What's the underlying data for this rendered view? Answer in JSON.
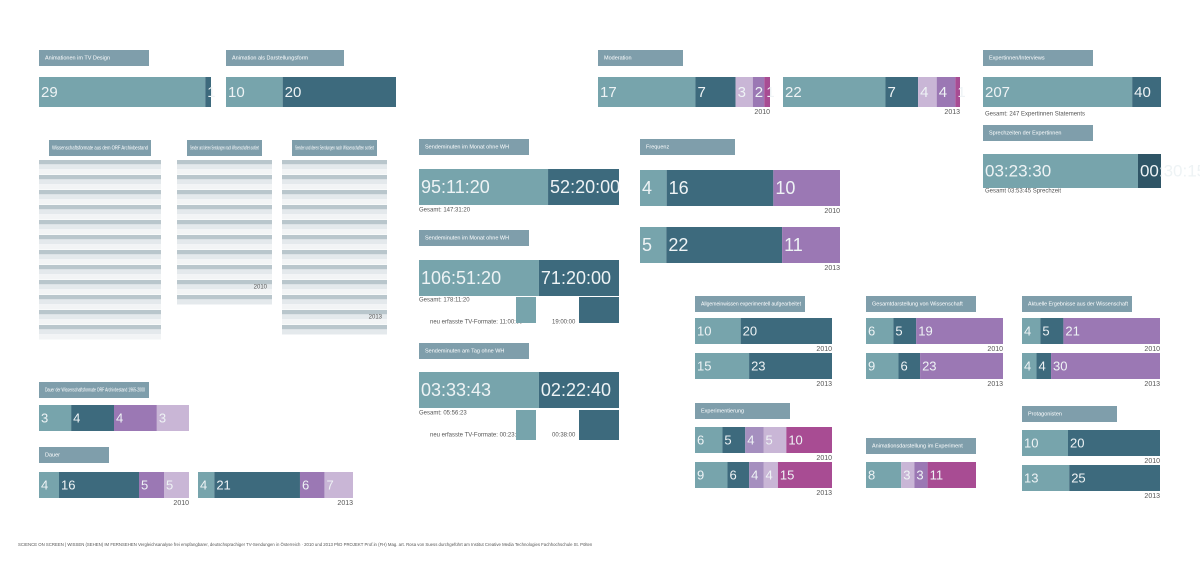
{
  "panels": [
    {
      "title": "Animationen im TV Design",
      "colors": [
        "#77a4ac",
        "#3d6a7d"
      ],
      "rows": [
        {
          "values": [
            29,
            1
          ]
        }
      ]
    },
    {
      "title": "Animation als Darstellungsform",
      "colors": [
        "#77a4ac",
        "#3d6a7d"
      ],
      "rows": [
        {
          "values": [
            10,
            20
          ]
        }
      ]
    },
    {
      "title": "Moderation",
      "colors": [
        "#77a4ac",
        "#3d6a7d",
        "#c9b6d6",
        "#9b78b4",
        "#a84c93"
      ],
      "rows": [
        {
          "label": "2010",
          "values": [
            17,
            7,
            3,
            2,
            1
          ]
        },
        {
          "label": "2013",
          "values": [
            22,
            7,
            4,
            4,
            1
          ]
        }
      ]
    },
    {
      "title": "Expertinnen/Interviews",
      "colors": [
        "#77a4ac",
        "#3d6a7d"
      ],
      "rows": [
        {
          "values": [
            207,
            40
          ]
        }
      ],
      "notes": [
        "Gesamt: 247 Expertinnen Statements"
      ]
    },
    {
      "title": "Sprechzeiten der Expertinnen",
      "colors": [
        "#77a4ac",
        "#2f5566"
      ],
      "rows": [
        {
          "values": [
            "03:23:30",
            "00:30:15"
          ]
        }
      ],
      "notes": [
        "Gesamt 03:53:45 Sprechzeit"
      ]
    },
    {
      "title": "Sendeminuten im Monat ohne WH",
      "colors": [
        "#77a4ac",
        "#3d6a7d"
      ],
      "rows": [
        {
          "values": [
            "95:11:20",
            "52:20:00"
          ]
        }
      ],
      "notes": [
        "Gesamt: 147:31:20"
      ]
    },
    {
      "title": "Sendeminuten im Monat ohne WH",
      "colors": [
        "#77a4ac",
        "#3d6a7d"
      ],
      "rows": [
        {
          "values": [
            "106:51:20",
            "71:20:00"
          ]
        }
      ],
      "notes": [
        "Gesamt: 178:11:20",
        "neu erfasste TV-Formate: 11:00:00",
        "19:00:00"
      ]
    },
    {
      "title": "Sendeminuten am Tag ohne WH",
      "colors": [
        "#77a4ac",
        "#3d6a7d"
      ],
      "rows": [
        {
          "values": [
            "03:33:43",
            "02:22:40"
          ]
        }
      ],
      "notes": [
        "Gesamt: 05:56:23",
        "neu erfasste TV-Formate: 00:23:20",
        "00:38:00"
      ]
    },
    {
      "title": "Frequenz",
      "colors": [
        "#77a4ac",
        "#3d6a7d",
        "#9b78b4"
      ],
      "rows": [
        {
          "label": "2010",
          "values": [
            4,
            16,
            10
          ]
        },
        {
          "label": "2013",
          "values": [
            5,
            22,
            11
          ]
        }
      ]
    },
    {
      "title": "Allgemeinwissen experimentell aufgearbeitet",
      "colors": [
        "#77a4ac",
        "#3d6a7d"
      ],
      "rows": [
        {
          "label": "2010",
          "values": [
            10,
            20
          ]
        },
        {
          "label": "2013",
          "values": [
            15,
            23
          ]
        }
      ]
    },
    {
      "title": "Gesamtdarstellung von Wissenschaft",
      "colors": [
        "#77a4ac",
        "#3d6a7d",
        "#9b78b4"
      ],
      "rows": [
        {
          "label": "2010",
          "values": [
            6,
            5,
            19
          ]
        },
        {
          "label": "2013",
          "values": [
            9,
            6,
            23
          ]
        }
      ]
    },
    {
      "title": "Aktuelle Ergebnisse aus der Wissenschaft",
      "colors": [
        "#77a4ac",
        "#3d6a7d",
        "#9b78b4"
      ],
      "rows": [
        {
          "label": "2010",
          "values": [
            4,
            5,
            21
          ]
        },
        {
          "label": "2013",
          "values": [
            4,
            4,
            30
          ]
        }
      ]
    },
    {
      "title": "Experimentierung",
      "colors": [
        "#77a4ac",
        "#3d6a7d",
        "#a58fbf",
        "#c9b6d6",
        "#a84c93"
      ],
      "rows": [
        {
          "label": "2010",
          "values": [
            6,
            5,
            4,
            5,
            10
          ]
        },
        {
          "label": "2013",
          "values": [
            9,
            6,
            4,
            4,
            15
          ]
        }
      ]
    },
    {
      "title": "Animationsdarstellung im Experiment",
      "colors": [
        "#77a4ac",
        "#c9b6d6",
        "#9b78b4",
        "#a84c93"
      ],
      "rows": [
        {
          "values": [
            8,
            3,
            3,
            11
          ]
        }
      ]
    },
    {
      "title": "Protagonisten",
      "colors": [
        "#77a4ac",
        "#3d6a7d"
      ],
      "rows": [
        {
          "label": "2010",
          "values": [
            10,
            20
          ]
        },
        {
          "label": "2013",
          "values": [
            13,
            25
          ]
        }
      ]
    },
    {
      "title": "Dauer der Wissenschaftsformate ORF Archivbestand 1965-2000",
      "colors": [
        "#77a4ac",
        "#3d6a7d",
        "#9b78b4",
        "#c9b6d6"
      ],
      "rows": [
        {
          "values": [
            3,
            4,
            4,
            3
          ]
        }
      ]
    },
    {
      "title": "Dauer",
      "colors": [
        "#77a4ac",
        "#3d6a7d",
        "#9b78b4",
        "#c9b6d6"
      ],
      "rows": [
        {
          "label": "2010",
          "values": [
            4,
            16,
            5,
            5
          ]
        },
        {
          "label": "2013",
          "values": [
            4,
            21,
            6,
            7
          ]
        }
      ]
    }
  ],
  "tables": [
    {
      "title": "Wissenschaftsformate aus dem ORF Archivbestand"
    },
    {
      "title": "Sender und deren Sendungen nach Wissenschaften sortiert",
      "label": "2010"
    },
    {
      "title": "Sender und deren Sendungen nach Wissenschaften sortiert",
      "label": "2013"
    }
  ],
  "footer": "SCIENCE ON SCREEN | WISSEN (SEHEN) IM FERNSEHEN Vergleichsanalyse frei empfangbarer, deutschsprachiger TV-Sendungen in Österreich · 2010 und 2013 PhD PROJEKT Prof.in (FH) Mag. art. Rosa von Suess durchgeführt am Institut Creative Media Technologies Fachhochschule St. Pölten"
}
